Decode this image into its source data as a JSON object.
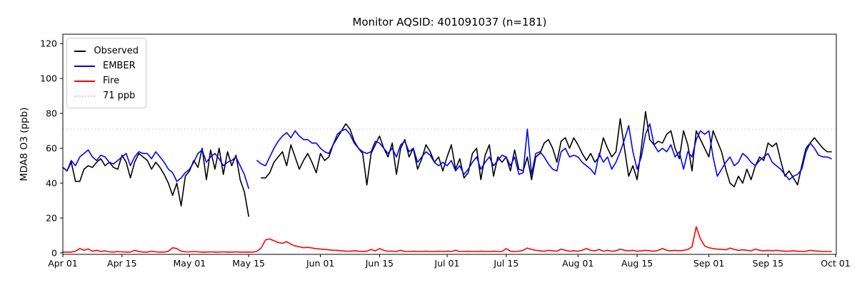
{
  "title": "Monitor AQSID: 401091037 (n=181)",
  "colors": {
    "observed": "#000000",
    "ember": "#0000ff",
    "fire": "#ff0000",
    "threshold": "#d3d3d3",
    "axis": "#000000",
    "background": "#ffffff"
  },
  "chart_data": {
    "type": "line",
    "title": "Monitor AQSID: 401091037 (n=181)",
    "xlabel": "",
    "ylabel": "MDA8 O3 (ppb)",
    "grid": false,
    "legend_position": "upper left",
    "y_ticks": [
      0,
      20,
      40,
      60,
      80,
      100,
      120
    ],
    "ylim": [
      -1,
      125.3
    ],
    "x_ticks": [
      {
        "label": "Apr 01",
        "day": 0
      },
      {
        "label": "Apr 15",
        "day": 14
      },
      {
        "label": "May 01",
        "day": 30
      },
      {
        "label": "May 15",
        "day": 44
      },
      {
        "label": "Jun 01",
        "day": 61
      },
      {
        "label": "Jun 15",
        "day": 75
      },
      {
        "label": "Jul 01",
        "day": 91
      },
      {
        "label": "Jul 15",
        "day": 105
      },
      {
        "label": "Aug 01",
        "day": 122
      },
      {
        "label": "Aug 15",
        "day": 136
      },
      {
        "label": "Sep 01",
        "day": 153
      },
      {
        "label": "Sep 15",
        "day": 167
      },
      {
        "label": "Oct 01",
        "day": 183
      }
    ],
    "x_span_days": 183,
    "threshold": {
      "label": "71 ppb",
      "value": 71,
      "style": "dotted"
    },
    "series": [
      {
        "name": "Observed",
        "color": "#000000",
        "style": "solid",
        "values": [
          49,
          47,
          52,
          41,
          41,
          48,
          50,
          49,
          52,
          54,
          50,
          52,
          49,
          48,
          56,
          52,
          43,
          52,
          57,
          55,
          53,
          48,
          52,
          49,
          45,
          40,
          33,
          40,
          27,
          44,
          47,
          53,
          49,
          60,
          42,
          59,
          48,
          60,
          45,
          58,
          50,
          56,
          42,
          35,
          21,
          null,
          null,
          43,
          43,
          46,
          52,
          55,
          58,
          50,
          62,
          55,
          48,
          53,
          57,
          52,
          46,
          57,
          53,
          55,
          62,
          66,
          70,
          74,
          71,
          64,
          60,
          57,
          39,
          57,
          62,
          67,
          60,
          55,
          63,
          45,
          60,
          65,
          55,
          60,
          48,
          54,
          62,
          58,
          52,
          55,
          47,
          55,
          62,
          48,
          54,
          43,
          46,
          57,
          60,
          42,
          56,
          62,
          44,
          55,
          52,
          55,
          47,
          59,
          48,
          47,
          55,
          42,
          55,
          57,
          63,
          65,
          60,
          52,
          64,
          66,
          60,
          66,
          62,
          57,
          53,
          57,
          52,
          55,
          66,
          60,
          55,
          58,
          77,
          60,
          44,
          50,
          42,
          60,
          81,
          65,
          62,
          64,
          63,
          68,
          70,
          60,
          54,
          70,
          62,
          47,
          70,
          65,
          60,
          55,
          70,
          64,
          58,
          48,
          40,
          38,
          44,
          40,
          48,
          42,
          50,
          55,
          53,
          63,
          61,
          63,
          53,
          44,
          47,
          43,
          39,
          50,
          60,
          63,
          66,
          63,
          60,
          58,
          58
        ]
      },
      {
        "name": "EMBER",
        "color": "#0000ff",
        "style": "solid",
        "values": [
          49,
          47,
          53,
          50,
          55,
          57,
          59,
          55,
          53,
          56,
          55,
          52,
          51,
          53,
          55,
          57,
          50,
          55,
          58,
          57,
          57,
          54,
          58,
          55,
          52,
          48,
          46,
          41,
          43,
          46,
          48,
          52,
          57,
          59,
          52,
          55,
          57,
          54,
          50,
          52,
          53,
          55,
          50,
          45,
          37,
          null,
          53,
          51,
          50,
          55,
          60,
          64,
          67,
          69,
          66,
          70,
          67,
          65,
          65,
          63,
          63,
          60,
          58,
          57,
          62,
          68,
          70,
          71,
          68,
          63,
          60,
          58,
          57,
          58,
          64,
          63,
          60,
          57,
          60,
          55,
          62,
          64,
          58,
          60,
          52,
          55,
          58,
          56,
          52,
          50,
          52,
          50,
          53,
          47,
          50,
          45,
          48,
          52,
          55,
          48,
          52,
          55,
          50,
          53,
          56,
          55,
          50,
          55,
          45,
          46,
          71,
          45,
          57,
          58,
          55,
          51,
          48,
          47,
          58,
          60,
          55,
          56,
          55,
          52,
          50,
          48,
          45,
          57,
          52,
          55,
          48,
          52,
          58,
          65,
          73,
          58,
          48,
          55,
          68,
          74,
          62,
          58,
          60,
          58,
          62,
          55,
          58,
          48,
          58,
          55,
          65,
          70,
          68,
          70,
          55,
          44,
          48,
          52,
          55,
          50,
          52,
          57,
          55,
          52,
          50,
          53,
          55,
          57,
          52,
          50,
          48,
          45,
          42,
          44,
          45,
          48,
          58,
          63,
          60,
          56,
          55,
          55,
          54
        ]
      },
      {
        "name": "Fire",
        "color": "#ff0000",
        "style": "solid",
        "values": [
          0.5,
          0.5,
          0.5,
          1.0,
          2.5,
          1.5,
          2.3,
          1.0,
          1.5,
          0.8,
          1.2,
          0.6,
          0.5,
          0.8,
          0.6,
          0.5,
          0.5,
          1.5,
          0.8,
          0.5,
          0.5,
          1.0,
          0.6,
          0.5,
          0.5,
          1.0,
          3.0,
          2.5,
          1.0,
          0.6,
          0.6,
          0.8,
          0.6,
          0.5,
          0.5,
          0.6,
          0.5,
          0.5,
          0.6,
          0.5,
          0.5,
          0.6,
          0.5,
          0.5,
          0.5,
          0.5,
          1.0,
          3.0,
          7.5,
          8.0,
          7.0,
          6.0,
          5.5,
          6.5,
          5.0,
          4.0,
          3.5,
          3.0,
          3.2,
          2.8,
          2.5,
          2.2,
          2.0,
          1.8,
          1.5,
          1.5,
          1.2,
          1.0,
          1.0,
          1.2,
          1.0,
          0.8,
          1.0,
          2.0,
          1.2,
          2.5,
          1.5,
          1.0,
          1.0,
          0.8,
          1.5,
          0.8,
          0.8,
          1.0,
          0.8,
          0.8,
          1.0,
          0.8,
          0.8,
          1.0,
          0.8,
          1.0,
          0.8,
          1.5,
          0.8,
          0.8,
          1.0,
          0.8,
          0.8,
          1.0,
          0.8,
          0.8,
          1.0,
          0.8,
          0.8,
          2.5,
          1.0,
          0.8,
          1.0,
          1.5,
          2.8,
          2.0,
          1.5,
          1.2,
          1.0,
          1.5,
          1.2,
          1.0,
          2.2,
          1.5,
          1.0,
          1.2,
          1.0,
          1.5,
          2.5,
          1.5,
          1.2,
          2.0,
          1.0,
          1.5,
          1.0,
          1.2,
          2.2,
          1.5,
          1.2,
          1.5,
          1.0,
          1.2,
          1.5,
          1.2,
          1.0,
          1.5,
          2.5,
          1.5,
          1.2,
          1.5,
          1.2,
          1.5,
          2.0,
          3.5,
          15.0,
          8.0,
          4.0,
          3.0,
          2.5,
          2.2,
          2.0,
          1.8,
          2.8,
          2.0,
          1.5,
          1.8,
          1.5,
          1.2,
          2.2,
          1.5,
          1.2,
          1.5,
          1.2,
          1.5,
          1.2,
          1.0,
          1.0,
          1.2,
          1.0,
          0.8,
          1.0,
          1.5,
          1.2,
          1.0,
          0.8,
          0.8,
          0.8
        ]
      }
    ],
    "legend_entries": [
      {
        "label": "Observed",
        "color": "#000000",
        "style": "solid"
      },
      {
        "label": "EMBER",
        "color": "#0000ff",
        "style": "solid"
      },
      {
        "label": "Fire",
        "color": "#ff0000",
        "style": "solid"
      },
      {
        "label": "71 ppb",
        "color": "#d3d3d3",
        "style": "dotted"
      }
    ]
  }
}
